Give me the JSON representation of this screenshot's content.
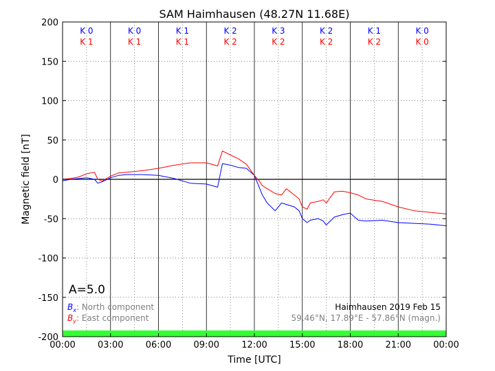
{
  "chart_data": {
    "type": "line",
    "title": "SAM Haimhausen (48.27N 11.68E)",
    "xlabel": "Time [UTC]",
    "ylabel": "Magnetic field [nT]",
    "ylim": [
      -200,
      200
    ],
    "xlim_hours": [
      0,
      24
    ],
    "x_tick_labels": [
      "00:00",
      "03:00",
      "06:00",
      "09:00",
      "12:00",
      "15:00",
      "18:00",
      "21:00",
      "00:00"
    ],
    "y_tick_values": [
      -200,
      -150,
      -100,
      -50,
      0,
      50,
      100,
      150,
      200
    ],
    "grid": true,
    "k_index": {
      "x_row": [
        "K 0",
        "K 0",
        "K 1",
        "K 2",
        "K 3",
        "K 2",
        "K 1",
        "K 0"
      ],
      "y_row": [
        "K 1",
        "K 1",
        "K 1",
        "K 2",
        "K 2",
        "K 2",
        "K 2",
        "K 0"
      ]
    },
    "a_index": "A=5.0",
    "legend": {
      "x_symbol": "B",
      "x_sub": "x",
      "x_label": ": North component",
      "y_symbol": "B",
      "y_sub": "y",
      "y_label": ": East component",
      "placement": "bottom-left"
    },
    "station_note": "Haimhausen 2019 Feb 15",
    "coord_note": "59.46°N, 17.89°E - 57.86°N (magn.)",
    "series": [
      {
        "key": "Bx",
        "color": "#0000ff",
        "x": [
          0,
          0.5,
          1,
          1.5,
          2,
          2.2,
          2.5,
          3,
          3.5,
          4,
          5,
          6,
          7,
          8,
          9,
          9.7,
          10,
          10.5,
          11,
          11.5,
          12,
          12.3,
          12.5,
          12.8,
          13.3,
          13.7,
          14,
          14.5,
          14.8,
          15,
          15.3,
          15.5,
          16,
          16.3,
          16.5,
          17,
          17.5,
          18,
          18.5,
          19,
          20,
          21,
          22,
          23,
          24
        ],
        "values": [
          -2,
          0,
          1,
          2,
          0,
          -5,
          -3,
          2,
          5,
          6,
          6,
          5,
          1,
          -5,
          -6,
          -10,
          20,
          18,
          15,
          14,
          5,
          -10,
          -20,
          -30,
          -40,
          -30,
          -32,
          -35,
          -40,
          -50,
          -55,
          -52,
          -50,
          -53,
          -58,
          -48,
          -45,
          -43,
          -52,
          -53,
          -52,
          -55,
          -56,
          -57,
          -59
        ]
      },
      {
        "key": "By",
        "color": "#ff0000",
        "x": [
          0,
          0.5,
          1,
          1.5,
          2,
          2.2,
          2.5,
          3,
          3.5,
          4,
          5,
          6,
          7,
          8,
          9,
          9.7,
          10,
          10.5,
          11,
          11.5,
          12,
          12.3,
          12.5,
          12.8,
          13.3,
          13.7,
          14,
          14.5,
          14.8,
          15,
          15.3,
          15.5,
          16,
          16.3,
          16.5,
          17,
          17.5,
          18,
          18.5,
          19,
          20,
          21,
          22,
          23,
          24
        ],
        "values": [
          0,
          1,
          3,
          7,
          9,
          0,
          -2,
          4,
          8,
          9,
          11,
          14,
          18,
          21,
          21,
          17,
          36,
          31,
          26,
          19,
          5,
          -2,
          -8,
          -12,
          -18,
          -20,
          -12,
          -20,
          -25,
          -35,
          -38,
          -30,
          -28,
          -26,
          -30,
          -16,
          -15,
          -17,
          -20,
          -25,
          -28,
          -35,
          -40,
          -42,
          -44
        ]
      }
    ]
  }
}
